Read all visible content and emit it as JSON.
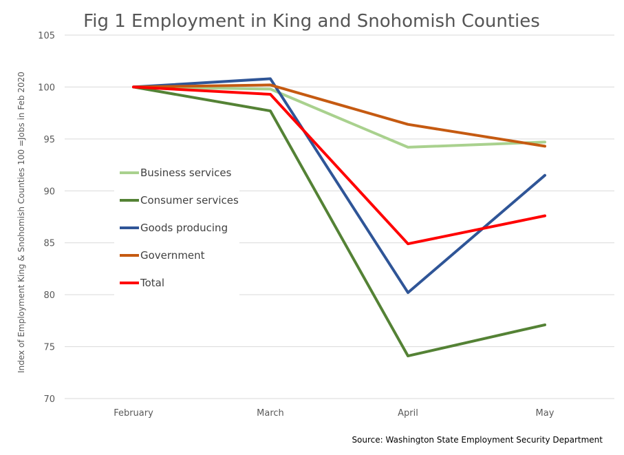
{
  "chart_data": {
    "type": "line",
    "title": "Fig 1 Employment in King and Snohomish Counties",
    "ylabel": "Index of Employment King & Snohomish  Counties 100 =Jobs in Feb 2020",
    "xlabel": "",
    "categories": [
      "February",
      "March",
      "April",
      "May"
    ],
    "ylim": [
      70,
      105
    ],
    "yticks": [
      "70",
      "75",
      "80",
      "85",
      "90",
      "95",
      "100",
      "105"
    ],
    "grid": true,
    "legend_position": "left-middle",
    "series": [
      {
        "name": "Business services",
        "color": "#a9d18e",
        "values": [
          100,
          99.8,
          94.2,
          94.7
        ]
      },
      {
        "name": "Consumer services",
        "color": "#548235",
        "values": [
          100,
          97.7,
          74.1,
          77.1
        ]
      },
      {
        "name": "Goods producing",
        "color": "#2f5597",
        "values": [
          100,
          100.8,
          80.2,
          91.5
        ]
      },
      {
        "name": "Government",
        "color": "#c55a11",
        "values": [
          100,
          100.2,
          96.4,
          94.3
        ]
      },
      {
        "name": "Total",
        "color": "#ff0000",
        "values": [
          100,
          99.3,
          84.9,
          87.6
        ]
      }
    ],
    "source": "Source: Washington State Employment Security Department"
  }
}
